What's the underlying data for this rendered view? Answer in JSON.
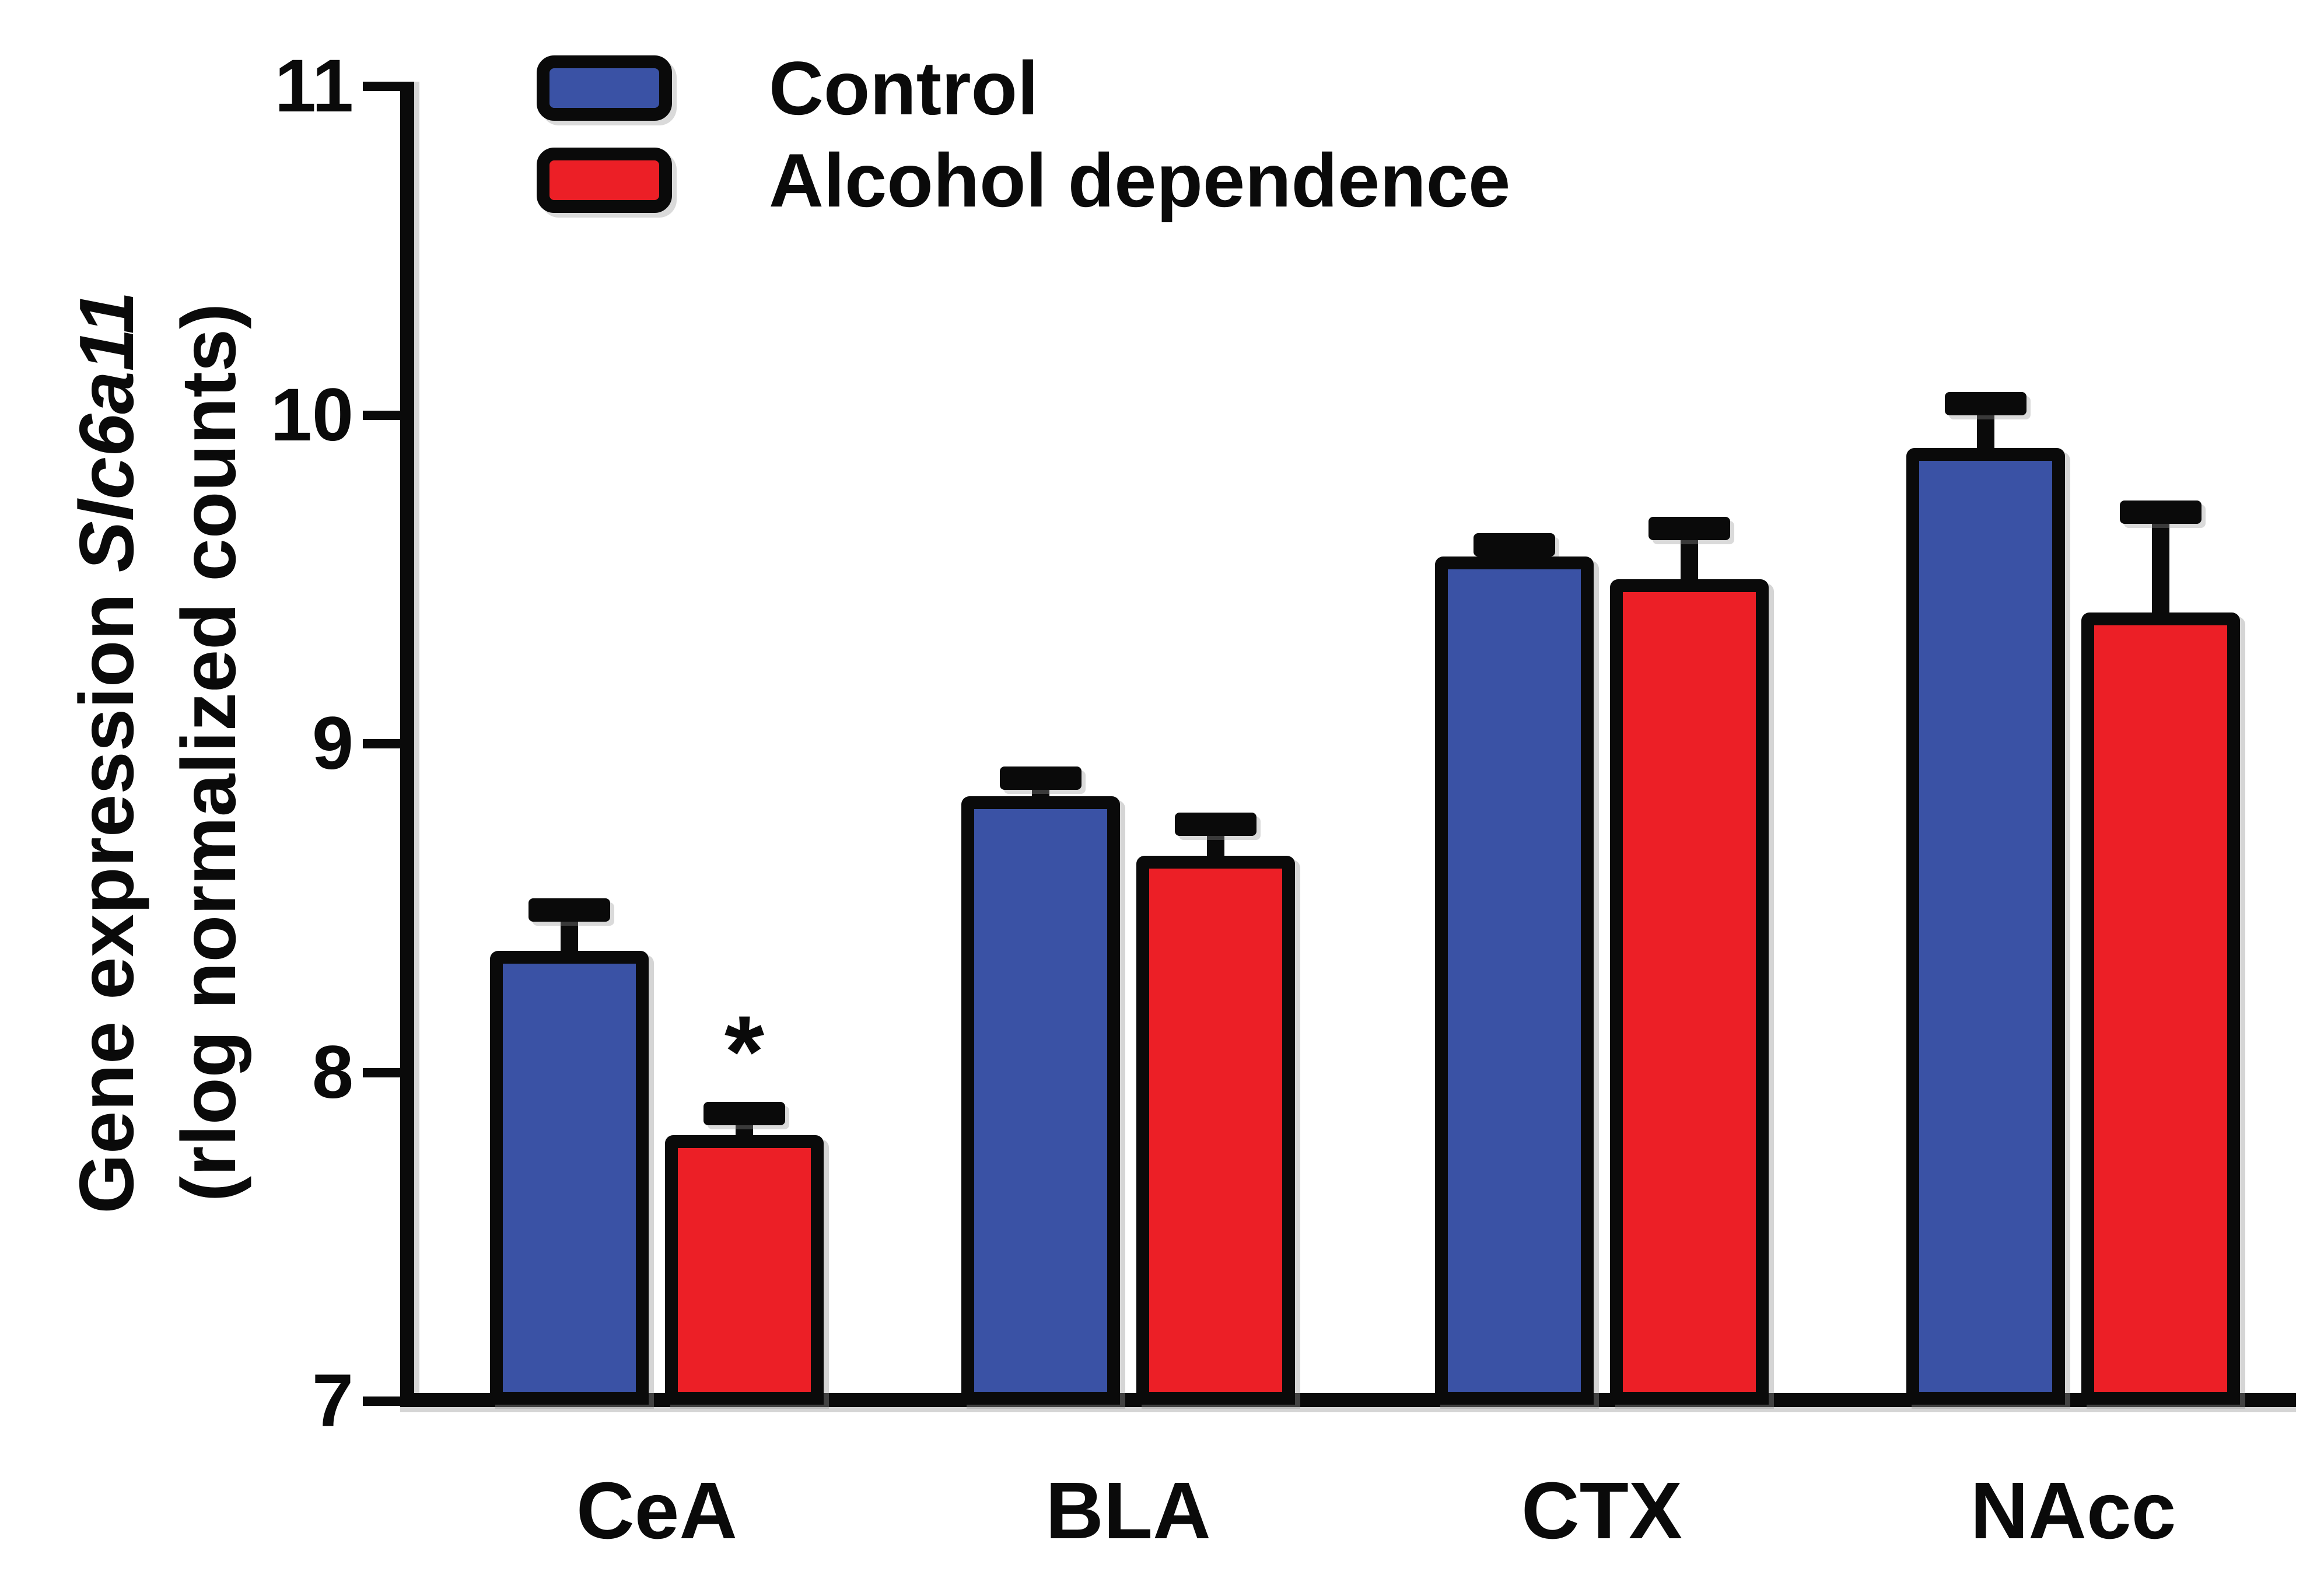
{
  "figure": {
    "background": "#ffffff"
  },
  "y_axis": {
    "title_prefix": "Gene expression",
    "title_gene": "Slc6a11",
    "title_line2": "(rlog normalized counts)",
    "range": [
      7,
      11
    ]
  },
  "legend": {
    "items": [
      {
        "label": "Control",
        "color": "#3a52a5"
      },
      {
        "label": "Alcohol dependence",
        "color": "#ec1f26"
      }
    ]
  },
  "chart_data": {
    "type": "bar",
    "title": "",
    "categories": [
      "CeA",
      "BLA",
      "CTX",
      "NAcc"
    ],
    "series": [
      {
        "name": "Control",
        "color": "#3a52a5",
        "values": [
          8.37,
          8.84,
          9.57,
          9.9
        ],
        "errors": [
          0.16,
          0.09,
          0.07,
          0.17
        ]
      },
      {
        "name": "Alcohol dependence",
        "color": "#ec1f26",
        "values": [
          7.81,
          8.66,
          9.5,
          9.4
        ],
        "errors": [
          0.1,
          0.13,
          0.19,
          0.34
        ]
      }
    ],
    "error_bars": "+SEM",
    "ylabel": "Gene expression Slc6a11 (rlog normalized counts)",
    "xlabel": "",
    "ylim": [
      7,
      11
    ],
    "y_ticks": [
      7,
      8,
      9,
      10,
      11
    ],
    "grid": false,
    "legend_position": "top-left",
    "outline_color": "#0a0a0a",
    "annotations": [
      {
        "text": "*",
        "category": "CeA",
        "series": "Alcohol dependence",
        "position": "above-error-bar",
        "meaning": "significant difference"
      }
    ]
  }
}
